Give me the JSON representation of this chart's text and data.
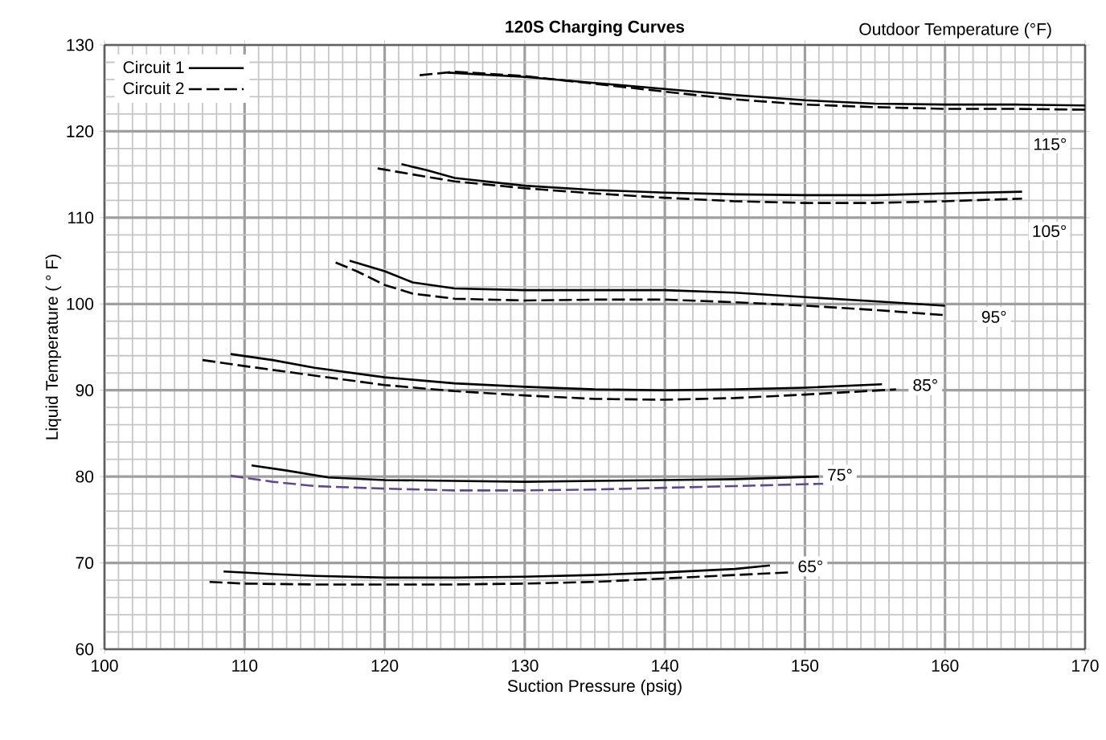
{
  "chart_data": {
    "type": "line",
    "title": "120S Charging Curves",
    "xlabel": "Suction Pressure (psig)",
    "ylabel": "Liquid Temperature ( ° F)",
    "xlim": [
      100,
      170
    ],
    "xticks": [
      100,
      110,
      120,
      130,
      140,
      150,
      160,
      170
    ],
    "ylim": [
      60,
      130
    ],
    "yticks": [
      60,
      70,
      80,
      90,
      100,
      110,
      120,
      130
    ],
    "grid": true,
    "legend": "top left",
    "marker": "none",
    "series": [
      {
        "name": "Circuit 1",
        "color": "#000000",
        "line_style": "solid",
        "x": [
          124.5,
          130,
          135,
          140,
          145,
          150,
          155,
          160,
          165,
          170
        ],
        "values": [
          126.8,
          126.3,
          125.6,
          124.9,
          124.2,
          123.6,
          123.2,
          123.1,
          123.1,
          123.0
        ]
      },
      {
        "name": "Circuit 2",
        "color": "#000000",
        "line_style": "dashed",
        "x": [
          122.5,
          125,
          130,
          135,
          140,
          145,
          150,
          155,
          160,
          165,
          170
        ],
        "values": [
          126.5,
          126.9,
          126.4,
          125.5,
          124.6,
          123.7,
          123.1,
          122.8,
          122.6,
          122.6,
          122.5
        ]
      },
      {
        "color": "#000000",
        "line_style": "solid",
        "x": [
          121.2,
          123,
          125,
          130,
          135,
          140,
          145,
          150,
          155,
          160,
          165.5
        ],
        "values": [
          116.2,
          115.5,
          114.6,
          113.7,
          113.2,
          112.9,
          112.7,
          112.6,
          112.6,
          112.8,
          113.0
        ]
      },
      {
        "color": "#000000",
        "line_style": "dashed",
        "x": [
          119.5,
          122,
          125,
          130,
          135,
          140,
          145,
          150,
          155,
          160,
          165.5
        ],
        "values": [
          115.7,
          115.0,
          114.2,
          113.4,
          112.8,
          112.3,
          111.9,
          111.7,
          111.7,
          111.9,
          112.2
        ]
      },
      {
        "color": "#000000",
        "line_style": "solid",
        "x": [
          117.5,
          120,
          122,
          125,
          130,
          135,
          140,
          145,
          150,
          155,
          160
        ],
        "values": [
          105.0,
          103.8,
          102.5,
          101.8,
          101.6,
          101.6,
          101.6,
          101.3,
          100.8,
          100.3,
          99.8
        ]
      },
      {
        "color": "#000000",
        "line_style": "dashed",
        "x": [
          116.5,
          118,
          120,
          122,
          125,
          130,
          135,
          140,
          145,
          150,
          155,
          160
        ],
        "values": [
          104.8,
          103.8,
          102.2,
          101.2,
          100.6,
          100.4,
          100.5,
          100.5,
          100.2,
          99.8,
          99.3,
          98.7
        ]
      },
      {
        "color": "#000000",
        "line_style": "solid",
        "x": [
          109,
          112,
          115,
          120,
          125,
          130,
          135,
          140,
          145,
          150,
          155.5
        ],
        "values": [
          94.2,
          93.5,
          92.6,
          91.5,
          90.8,
          90.4,
          90.1,
          90.0,
          90.1,
          90.3,
          90.7
        ]
      },
      {
        "color": "#000000",
        "line_style": "dashed",
        "x": [
          107,
          110,
          115,
          120,
          125,
          130,
          135,
          140,
          145,
          150,
          156.5
        ],
        "values": [
          93.5,
          92.8,
          91.7,
          90.6,
          89.9,
          89.4,
          89.0,
          88.9,
          89.1,
          89.5,
          90.1
        ]
      },
      {
        "color": "#000000",
        "line_style": "solid",
        "x": [
          110.5,
          113,
          116,
          120,
          125,
          130,
          135,
          140,
          145,
          151
        ],
        "values": [
          81.3,
          80.7,
          79.9,
          79.6,
          79.5,
          79.4,
          79.5,
          79.6,
          79.7,
          80.0
        ]
      },
      {
        "color": "#5e4a85",
        "line_style": "dashed",
        "x": [
          109,
          112,
          115,
          120,
          125,
          130,
          135,
          140,
          145,
          152
        ],
        "values": [
          80.1,
          79.4,
          78.9,
          78.6,
          78.4,
          78.4,
          78.5,
          78.7,
          78.9,
          79.2
        ]
      },
      {
        "color": "#000000",
        "line_style": "solid",
        "x": [
          108.5,
          112,
          115,
          120,
          125,
          130,
          135,
          140,
          145,
          147.5
        ],
        "values": [
          69.0,
          68.7,
          68.5,
          68.3,
          68.3,
          68.4,
          68.6,
          68.9,
          69.3,
          69.7
        ]
      },
      {
        "color": "#000000",
        "line_style": "dashed",
        "x": [
          107.5,
          110,
          115,
          120,
          125,
          130,
          135,
          140,
          145,
          149
        ],
        "values": [
          67.8,
          67.6,
          67.5,
          67.5,
          67.5,
          67.6,
          67.8,
          68.2,
          68.6,
          68.9
        ]
      }
    ],
    "annotations": [
      "Outdoor Temperature (°F)",
      "115°",
      "105°",
      {
        "text": "95°",
        "x": 163.5,
        "y": 98.5
      },
      {
        "text": "85°",
        "x": 158.6,
        "y": 90.6
      },
      {
        "text": "75°",
        "x": 152.5,
        "y": 80.2
      },
      {
        "text": "65°",
        "x": 150.4,
        "y": 69.6
      }
    ]
  }
}
